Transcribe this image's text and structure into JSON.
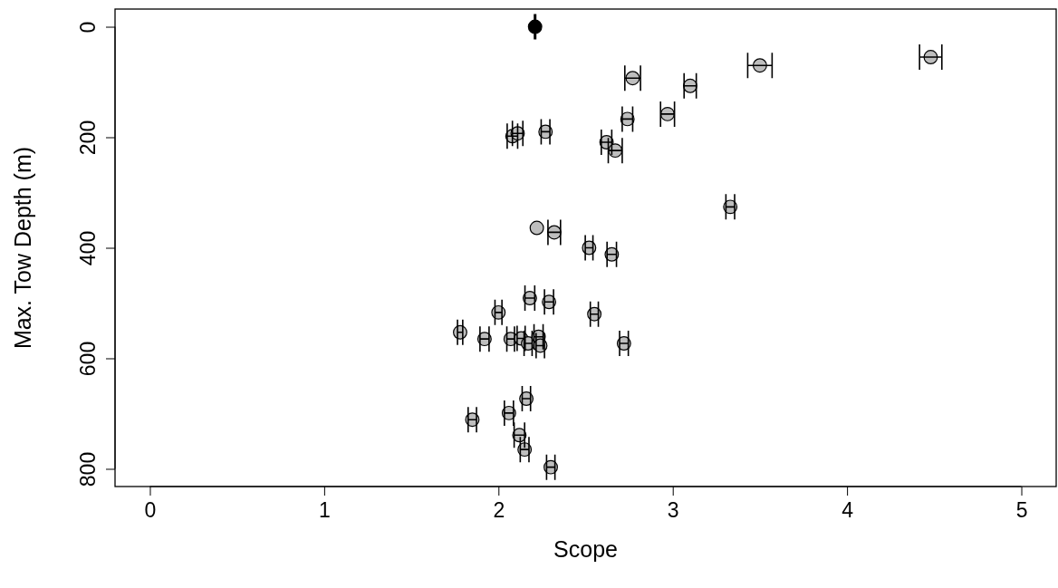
{
  "chart_data": {
    "type": "scatter",
    "xlabel": "Scope",
    "ylabel": "Max. Tow Depth (m)",
    "xlim": [
      -0.2,
      5.2
    ],
    "xticks": [
      0,
      1,
      2,
      3,
      4,
      5
    ],
    "ylim": [
      832,
      -32
    ],
    "yticks": [
      0,
      200,
      400,
      600,
      800
    ],
    "grid": false,
    "marker": "circle",
    "series": [
      {
        "color": "#000000",
        "x": [
          2.21
        ],
        "values": [
          0
        ],
        "xerrors": [
          0
        ]
      },
      {
        "color": "#bebebe",
        "x": [
          2.77,
          3.1,
          3.5,
          4.48,
          2.74,
          2.97,
          2.08,
          2.11,
          2.27,
          2.62,
          2.67,
          3.33,
          2.22,
          2.32,
          2.52,
          2.65,
          2.18,
          2.29,
          2.0,
          2.55,
          1.78,
          1.92,
          2.07,
          2.13,
          2.17,
          2.23,
          2.24,
          2.72,
          2.16,
          2.06,
          1.85,
          2.12,
          2.15,
          2.3
        ],
        "values": [
          93,
          107,
          70,
          55,
          167,
          158,
          198,
          193,
          190,
          209,
          224,
          326,
          364,
          372,
          400,
          412,
          491,
          498,
          517,
          520,
          553,
          565,
          565,
          564,
          573,
          561,
          577,
          573,
          673,
          699,
          711,
          739,
          765,
          797
        ],
        "xerrors": [
          0.045,
          0.035,
          0.07,
          0.064,
          0.03,
          0.04,
          0.03,
          0.03,
          0.025,
          0.03,
          0.04,
          0.025,
          null,
          0.036,
          0.022,
          0.027,
          0.028,
          0.026,
          0.02,
          0.023,
          0.015,
          0.026,
          0.022,
          0.023,
          0.023,
          0.026,
          0.024,
          0.025,
          0.024,
          0.026,
          0.024,
          0.03,
          0.025,
          0.024
        ]
      }
    ]
  }
}
